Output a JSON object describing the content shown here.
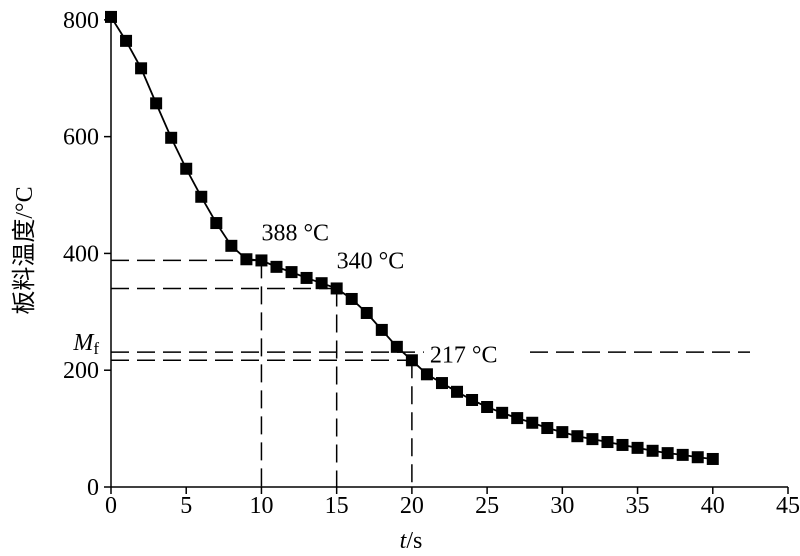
{
  "chart_data": {
    "type": "line",
    "ylabel": "板料温度/°C",
    "xlabel_var": "t",
    "xlabel_unit": "/s",
    "x": [
      0,
      1,
      2,
      3,
      4,
      5,
      6,
      7,
      8,
      9,
      10,
      11,
      12,
      13,
      14,
      15,
      16,
      17,
      18,
      19,
      20,
      21,
      22,
      23,
      24,
      25,
      26,
      27,
      28,
      29,
      30,
      31,
      32,
      33,
      34,
      35,
      36,
      37,
      38,
      39,
      40
    ],
    "series": [
      {
        "color": "#000000",
        "values": [
          805,
          764,
          717,
          657,
          598,
          545,
          497,
          452,
          413,
          390,
          388,
          377,
          368,
          358,
          349,
          340,
          322,
          298,
          269,
          240,
          217,
          193,
          178,
          163,
          149,
          137,
          127,
          118,
          110,
          101,
          94,
          87,
          82,
          77,
          72,
          67,
          62,
          58,
          55,
          51,
          48
        ]
      }
    ],
    "xlim": [
      0,
      45
    ],
    "ylim": [
      0,
      810
    ],
    "xticks": [
      0,
      5,
      10,
      15,
      20,
      25,
      30,
      35,
      40,
      45
    ],
    "yticks": [
      0,
      200,
      400,
      600,
      800
    ],
    "annotations": [
      {
        "text": "388 °C",
        "x": 10,
        "y": 388
      },
      {
        "text": "340 °C",
        "x": 15,
        "y": 340
      },
      {
        "text": "217 °C",
        "x": 20,
        "y": 217
      }
    ],
    "mf_line": {
      "value": 231,
      "label_main": "M",
      "label_sub": "f"
    }
  }
}
